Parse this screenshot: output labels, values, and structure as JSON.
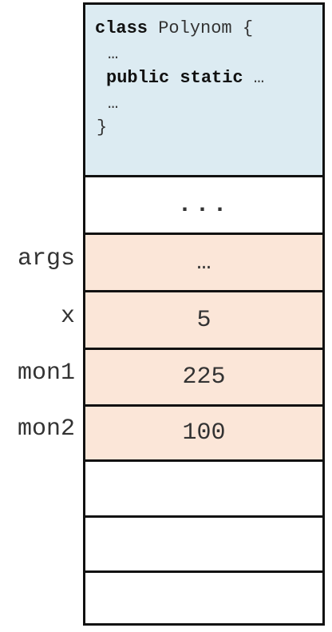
{
  "class_block": {
    "line1_keyword": "class",
    "line1_name": " Polynom {",
    "line2": "…",
    "line3_keywords": "public static",
    "line3_rest": " …",
    "line4": "…",
    "line5": "}"
  },
  "stack": {
    "separator": "...",
    "variables": [
      {
        "name": "args",
        "value": "…"
      },
      {
        "name": "x",
        "value": "5"
      },
      {
        "name": "mon1",
        "value": "225"
      },
      {
        "name": "mon2",
        "value": "100"
      }
    ],
    "empty_cells": 3
  },
  "colors": {
    "class_area": "#dcebf2",
    "frame_area": "#fbe6d8",
    "border": "#111111"
  }
}
